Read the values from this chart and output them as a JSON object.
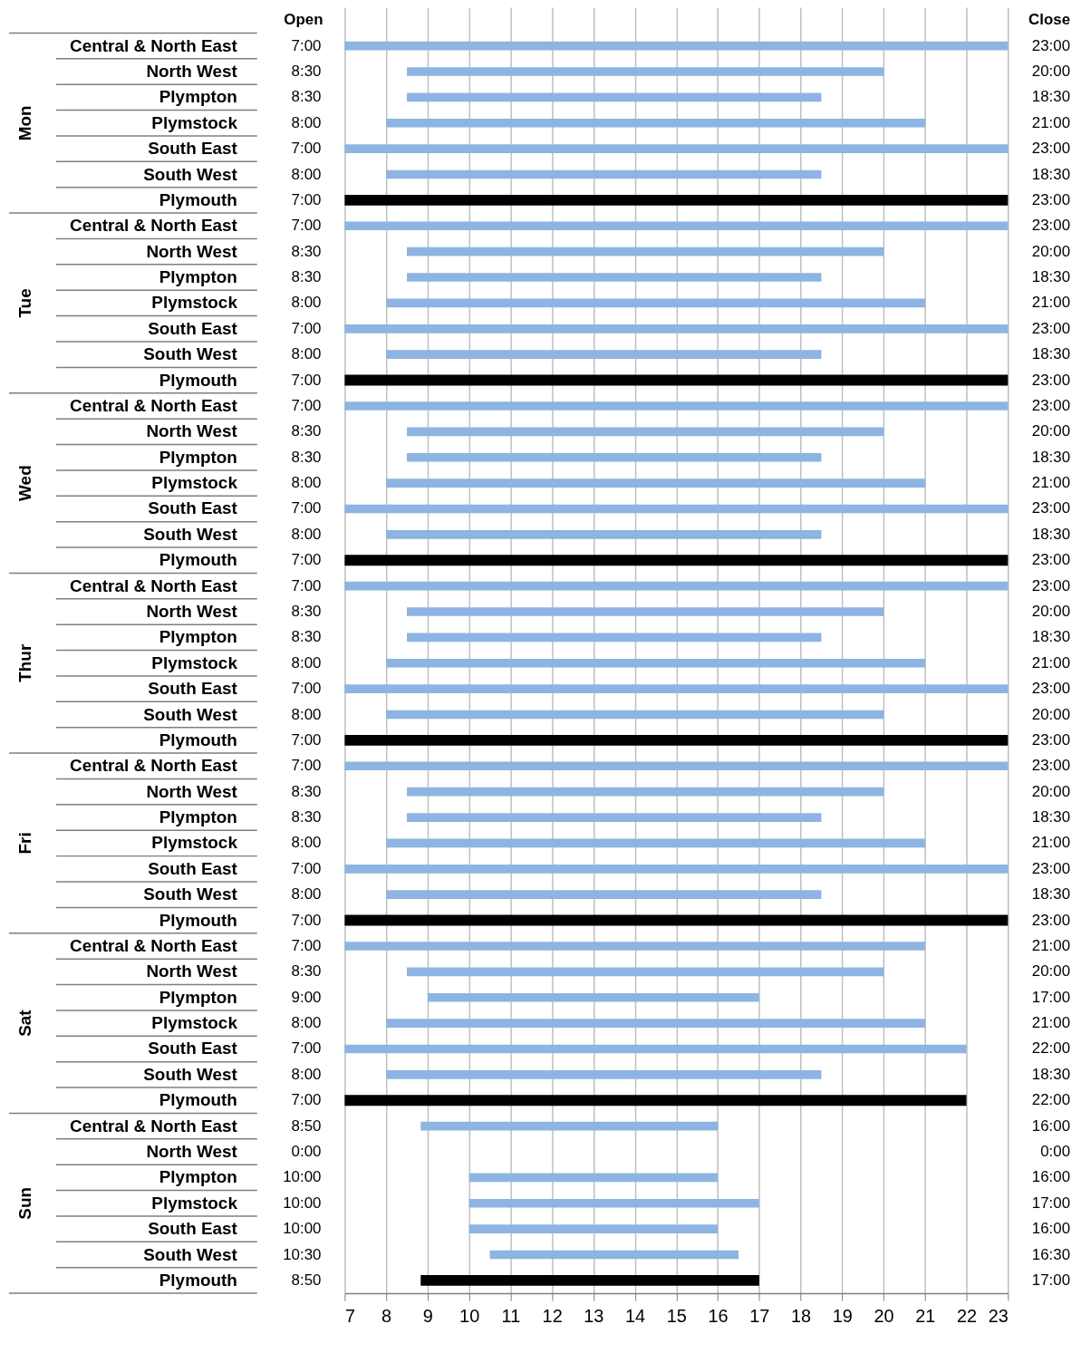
{
  "chart_data": {
    "type": "bar",
    "orientation": "horizontal",
    "grid": "x",
    "xlim": [
      7,
      23
    ],
    "xticks": [
      7,
      8,
      9,
      10,
      11,
      12,
      13,
      14,
      15,
      16,
      17,
      18,
      19,
      20,
      21,
      22,
      23
    ],
    "categories": [
      "Central & North East",
      "North West",
      "Plympton",
      "Plymstock",
      "South East",
      "South West",
      "Plymouth",
      "Central & North East",
      "North West",
      "Plympton",
      "Plymstock",
      "South East",
      "South West",
      "Plymouth",
      "Central & North East",
      "North West",
      "Plympton",
      "Plymstock",
      "South East",
      "South West",
      "Plymouth",
      "Central & North East",
      "North West",
      "Plympton",
      "Plymstock",
      "South East",
      "South West",
      "Plymouth",
      "Central & North East",
      "North West",
      "Plympton",
      "Plymstock",
      "South East",
      "South West",
      "Plymouth",
      "Central & North East",
      "North West",
      "Plympton",
      "Plymstock",
      "South East",
      "South West",
      "Plymouth",
      "Central & North East",
      "North West",
      "Plympton",
      "Plymstock",
      "South East",
      "South West",
      "Plymouth"
    ],
    "base": [
      7,
      8.5,
      8.5,
      8,
      7,
      8,
      7,
      7,
      8.5,
      8.5,
      8,
      7,
      8,
      7,
      7,
      8.5,
      8.5,
      8,
      7,
      8,
      7,
      7,
      8.5,
      8.5,
      8,
      7,
      8,
      7,
      7,
      8.5,
      8.5,
      8,
      7,
      8,
      7,
      7,
      8.5,
      9,
      8,
      7,
      8,
      7,
      8.8333,
      null,
      10,
      10,
      10,
      10.5,
      8.8333
    ],
    "values": [
      16,
      11.5,
      10,
      13,
      16,
      10.5,
      16,
      16,
      11.5,
      10,
      13,
      16,
      10.5,
      16,
      16,
      11.5,
      10,
      13,
      16,
      10.5,
      16,
      16,
      11.5,
      10,
      13,
      16,
      12,
      16,
      16,
      11.5,
      10,
      13,
      16,
      10.5,
      16,
      14,
      11.5,
      8,
      13,
      15,
      10.5,
      15,
      7.1667,
      null,
      6,
      7,
      6,
      6,
      8.1667
    ],
    "colors": [
      "#8db4e2",
      "#8db4e2",
      "#8db4e2",
      "#8db4e2",
      "#8db4e2",
      "#8db4e2",
      "#000000",
      "#8db4e2",
      "#8db4e2",
      "#8db4e2",
      "#8db4e2",
      "#8db4e2",
      "#8db4e2",
      "#000000",
      "#8db4e2",
      "#8db4e2",
      "#8db4e2",
      "#8db4e2",
      "#8db4e2",
      "#8db4e2",
      "#000000",
      "#8db4e2",
      "#8db4e2",
      "#8db4e2",
      "#8db4e2",
      "#8db4e2",
      "#8db4e2",
      "#000000",
      "#8db4e2",
      "#8db4e2",
      "#8db4e2",
      "#8db4e2",
      "#8db4e2",
      "#8db4e2",
      "#000000",
      "#8db4e2",
      "#8db4e2",
      "#8db4e2",
      "#8db4e2",
      "#8db4e2",
      "#8db4e2",
      "#000000",
      "#8db4e2",
      "#8db4e2",
      "#8db4e2",
      "#8db4e2",
      "#8db4e2",
      "#8db4e2",
      "#000000"
    ],
    "value_labels": [
      "23:00",
      "20:00",
      "18:30",
      "21:00",
      "23:00",
      "18:30",
      "23:00",
      "23:00",
      "20:00",
      "18:30",
      "21:00",
      "23:00",
      "18:30",
      "23:00",
      "23:00",
      "20:00",
      "18:30",
      "21:00",
      "23:00",
      "18:30",
      "23:00",
      "23:00",
      "20:00",
      "18:30",
      "21:00",
      "23:00",
      "20:00",
      "23:00",
      "23:00",
      "20:00",
      "18:30",
      "21:00",
      "23:00",
      "18:30",
      "23:00",
      "21:00",
      "20:00",
      "17:00",
      "21:00",
      "22:00",
      "18:30",
      "22:00",
      "16:00",
      "0:00",
      "16:00",
      "17:00",
      "16:00",
      "16:30",
      "17:00"
    ],
    "annotations": [
      "Open",
      "Close",
      "Mon",
      "Tue",
      "Wed",
      "Thur",
      "Fri",
      "Sat",
      "Sun",
      "7:00",
      "8:30",
      "8:30",
      "8:00",
      "7:00",
      "8:00",
      "7:00",
      "7:00",
      "8:30",
      "8:30",
      "8:00",
      "7:00",
      "8:00",
      "7:00",
      "7:00",
      "8:30",
      "8:30",
      "8:00",
      "7:00",
      "8:00",
      "7:00",
      "7:00",
      "8:30",
      "8:30",
      "8:00",
      "7:00",
      "8:00",
      "7:00",
      "7:00",
      "8:30",
      "8:30",
      "8:00",
      "7:00",
      "8:00",
      "7:00",
      "7:00",
      "8:30",
      "9:00",
      "8:00",
      "7:00",
      "8:00",
      "7:00",
      "8:50",
      "0:00",
      "10:00",
      "10:00",
      "10:00",
      "10:30",
      "8:50"
    ]
  }
}
